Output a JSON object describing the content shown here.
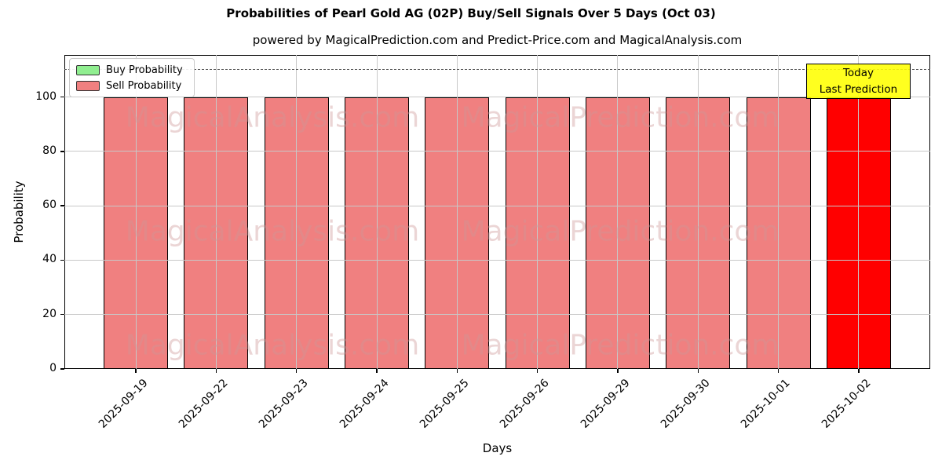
{
  "title": "Probabilities of Pearl Gold AG (02P) Buy/Sell Signals Over 5 Days (Oct 03)",
  "subtitle": "powered by MagicalPrediction.com and Predict-Price.com and MagicalAnalysis.com",
  "chart_data": {
    "type": "bar",
    "categories": [
      "2025-09-19",
      "2025-09-22",
      "2025-09-23",
      "2025-09-24",
      "2025-09-25",
      "2025-09-26",
      "2025-09-29",
      "2025-09-30",
      "2025-10-01",
      "2025-10-02"
    ],
    "series": [
      {
        "name": "Buy Probability",
        "color": "#90EE90",
        "values": [
          0,
          0,
          0,
          0,
          0,
          0,
          0,
          0,
          0,
          0
        ]
      },
      {
        "name": "Sell Probability",
        "color": "#F08080",
        "values": [
          100,
          100,
          100,
          100,
          100,
          100,
          100,
          100,
          100,
          100
        ],
        "bar_colors": [
          "#F08080",
          "#F08080",
          "#F08080",
          "#F08080",
          "#F08080",
          "#F08080",
          "#F08080",
          "#F08080",
          "#F08080",
          "#FF0000"
        ]
      }
    ],
    "today_index": 9,
    "title": "Probabilities of Pearl Gold AG (02P) Buy/Sell Signals Over 5 Days (Oct 03)",
    "xlabel": "Days",
    "ylabel": "Probability",
    "yticks": [
      0,
      20,
      40,
      60,
      80,
      100
    ],
    "ylim": [
      0,
      115.5
    ],
    "dashed_line_y": 110,
    "grid": true,
    "legend_position": "upper left"
  },
  "legend": {
    "items": [
      {
        "label": "Buy Probability",
        "color": "#90EE90"
      },
      {
        "label": "Sell Probability",
        "color": "#F08080"
      }
    ]
  },
  "annotation": {
    "line1": "Today",
    "line2": "Last Prediction",
    "bg_color": "#FFFF00"
  },
  "watermarks": [
    {
      "text": "MagicalAnalysis.com"
    },
    {
      "text": "MagicalPrediction.com"
    }
  ],
  "colors": {
    "buy": "#90EE90",
    "sell": "#F08080",
    "today_bar": "#FF0000",
    "annotation_bg": "#FFFF00",
    "grid": "#c8c8c8",
    "dashed_line": "#595959"
  }
}
